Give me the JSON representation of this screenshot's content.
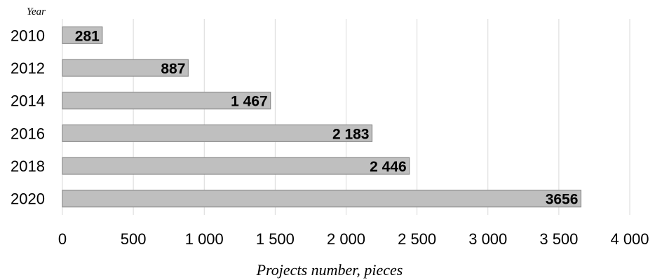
{
  "chart_data": {
    "type": "bar",
    "orientation": "horizontal",
    "categories": [
      "2010",
      "2012",
      "2014",
      "2016",
      "2018",
      "2020"
    ],
    "values": [
      281,
      887,
      1467,
      2183,
      2446,
      3656
    ],
    "value_labels": [
      "281",
      "887",
      "1 467",
      "2 183",
      "2 446",
      "3656"
    ],
    "xlim": [
      0,
      4000
    ],
    "x_ticks": [
      0,
      500,
      1000,
      1500,
      2000,
      2500,
      3000,
      3500,
      4000
    ],
    "x_tick_labels": [
      "0",
      "500",
      "1 000",
      "1 500",
      "2 000",
      "2 500",
      "3 000",
      "3 500",
      "4 000"
    ],
    "xlabel": "Projects number, pieces",
    "ylabel": "Year",
    "grid": "vertical",
    "legend": "none",
    "colors": {
      "bar_fill": "#bfbfbf",
      "bar_stroke": "#8c8c8c",
      "grid": "#d9d9d9"
    }
  }
}
